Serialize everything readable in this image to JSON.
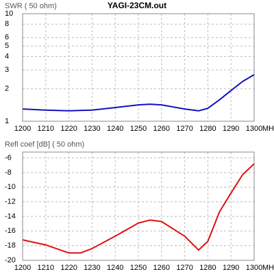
{
  "chart_data": [
    {
      "type": "line",
      "title": "YAGI-23CM.out",
      "y_label": "SWR ( 50 ohm)",
      "x_label": "MHz",
      "x": [
        1200,
        1210,
        1220,
        1230,
        1240,
        1250,
        1255,
        1260,
        1270,
        1276,
        1280,
        1285,
        1290,
        1295,
        1300
      ],
      "series": [
        {
          "name": "SWR",
          "color": "#1010c0",
          "values": [
            1.3,
            1.27,
            1.25,
            1.27,
            1.34,
            1.42,
            1.44,
            1.42,
            1.3,
            1.25,
            1.32,
            1.58,
            1.93,
            2.34,
            2.71
          ]
        }
      ],
      "xlim": [
        1200,
        1300
      ],
      "xticks": [
        1200,
        1210,
        1220,
        1230,
        1240,
        1250,
        1260,
        1270,
        1280,
        1290,
        1300
      ],
      "ylim": [
        1,
        10
      ],
      "yticks": [
        1,
        2,
        3,
        4,
        5,
        6,
        8,
        10
      ],
      "log_y": true,
      "grid": true
    },
    {
      "type": "line",
      "y_label": "Refl coef [dB] ( 50 ohm)",
      "x_label": "MHz",
      "x": [
        1200,
        1210,
        1220,
        1225,
        1230,
        1240,
        1250,
        1255,
        1260,
        1270,
        1276,
        1280,
        1285,
        1290,
        1295,
        1300
      ],
      "series": [
        {
          "name": "Refl coef",
          "color": "#e01010",
          "values": [
            -17.2,
            -17.9,
            -19.0,
            -19.0,
            -18.4,
            -16.7,
            -14.9,
            -14.5,
            -14.7,
            -16.7,
            -18.6,
            -17.4,
            -13.4,
            -10.8,
            -8.3,
            -6.8
          ]
        }
      ],
      "xlim": [
        1200,
        1300
      ],
      "xticks": [
        1200,
        1210,
        1220,
        1230,
        1240,
        1250,
        1260,
        1270,
        1280,
        1290,
        1300
      ],
      "ylim": [
        -20,
        -5.2
      ],
      "yticks": [
        -20,
        -18,
        -16,
        -14,
        -12,
        -10,
        -8,
        -6
      ],
      "log_y": false,
      "grid": true
    }
  ]
}
